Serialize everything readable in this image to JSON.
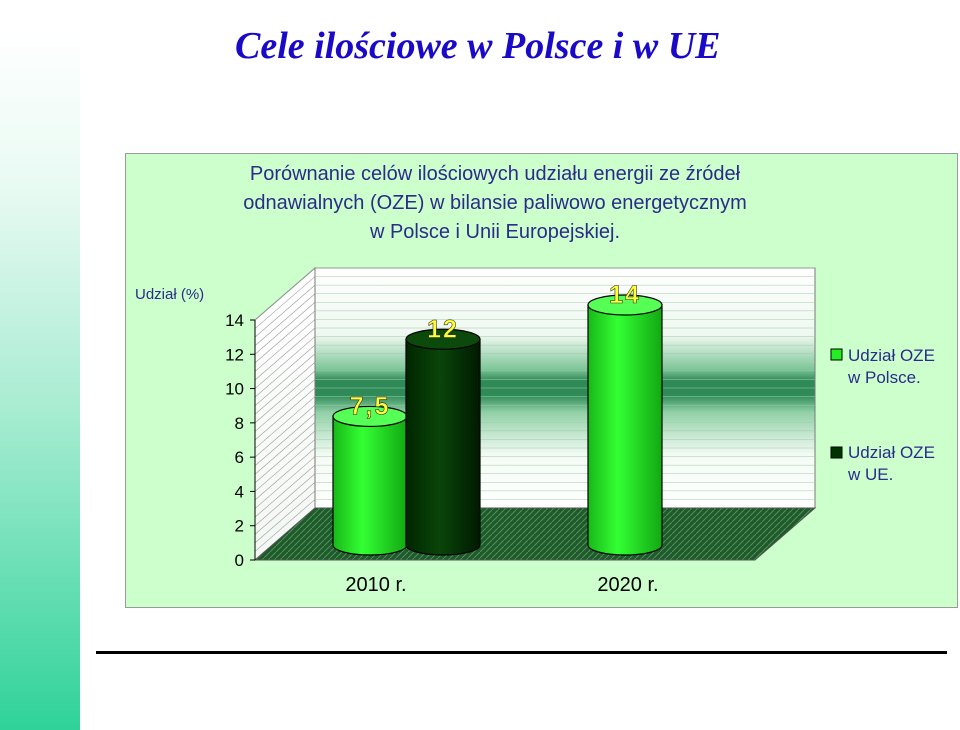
{
  "slide": {
    "title": "Cele ilościowe w Polsce i w UE"
  },
  "chart_data": {
    "type": "bar",
    "title_lines": [
      "Porównanie celów ilościowych udziału energii ze źródeł",
      "odnawialnych (OZE) w bilansie paliwowo energetycznym",
      "w Polsce i Unii Europejskiej."
    ],
    "ylabel": "Udział (%)",
    "ylim": [
      0,
      14
    ],
    "yticks": [
      0,
      2,
      4,
      6,
      8,
      10,
      12,
      14
    ],
    "categories": [
      "2010 r.",
      "2020 r."
    ],
    "series": [
      {
        "name": "Udział OZE w Polsce.",
        "values": [
          7.5,
          14
        ],
        "labels": [
          "7,5",
          "14"
        ],
        "color": "#22ee22"
      },
      {
        "name": "Udział OZE w UE.",
        "values": [
          12,
          null
        ],
        "labels": [
          "12",
          ""
        ],
        "color": "#003300"
      }
    ],
    "legend_position": "right",
    "label_color": "#ffff33"
  },
  "colors": {
    "slide_title": "#1a0ac8",
    "chart_title": "#2b2b8a",
    "frame_background": "#ccffcc",
    "floor": "#1f5a2a",
    "wall_band": "#2e8b57"
  }
}
